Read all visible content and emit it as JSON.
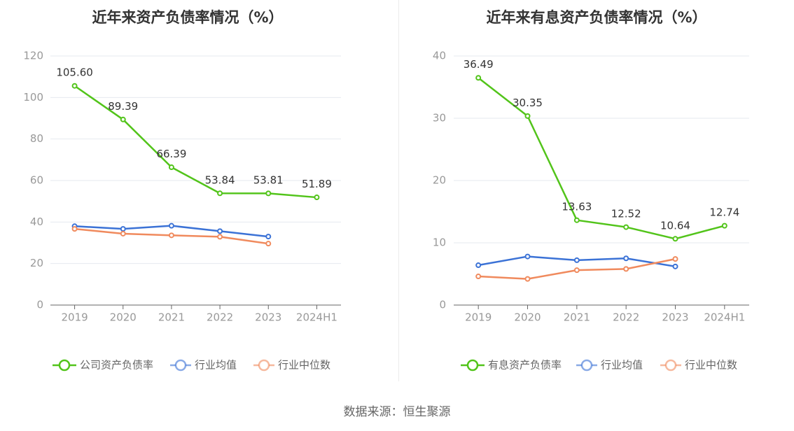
{
  "chart_data": [
    {
      "type": "line",
      "title": "近年来资产负债率情况（%）",
      "categories": [
        "2019",
        "2020",
        "2021",
        "2022",
        "2023",
        "2024H1"
      ],
      "ylim": [
        0,
        120
      ],
      "yticks": [
        0,
        20,
        40,
        60,
        80,
        100,
        120
      ],
      "grid": true,
      "legend_position": "bottom",
      "series": [
        {
          "name": "公司资产负债率",
          "color": "#52c41a",
          "values": [
            105.6,
            89.39,
            66.39,
            53.84,
            53.81,
            51.89
          ],
          "labels": [
            "105.60",
            "89.39",
            "66.39",
            "53.84",
            "53.81",
            "51.89"
          ]
        },
        {
          "name": "行业均值",
          "color": "#3b72d6",
          "values": [
            38.0,
            36.7,
            38.2,
            35.6,
            33.0,
            null
          ]
        },
        {
          "name": "行业中位数",
          "color": "#f08a5d",
          "values": [
            36.7,
            34.4,
            33.6,
            32.9,
            29.6,
            null
          ]
        }
      ]
    },
    {
      "type": "line",
      "title": "近年来有息资产负债率情况（%）",
      "categories": [
        "2019",
        "2020",
        "2021",
        "2022",
        "2023",
        "2024H1"
      ],
      "ylim": [
        0,
        40
      ],
      "yticks": [
        0,
        10,
        20,
        30,
        40
      ],
      "grid": true,
      "legend_position": "bottom",
      "series": [
        {
          "name": "有息资产负债率",
          "color": "#52c41a",
          "values": [
            36.49,
            30.35,
            13.63,
            12.52,
            10.64,
            12.74
          ],
          "labels": [
            "36.49",
            "30.35",
            "13.63",
            "12.52",
            "10.64",
            "12.74"
          ]
        },
        {
          "name": "行业均值",
          "color": "#3b72d6",
          "values": [
            6.4,
            7.8,
            7.2,
            7.5,
            6.2,
            null
          ]
        },
        {
          "name": "行业中位数",
          "color": "#f08a5d",
          "values": [
            4.6,
            4.2,
            5.6,
            5.8,
            7.4,
            null
          ]
        }
      ]
    }
  ],
  "source_text": "数据来源：恒生聚源"
}
